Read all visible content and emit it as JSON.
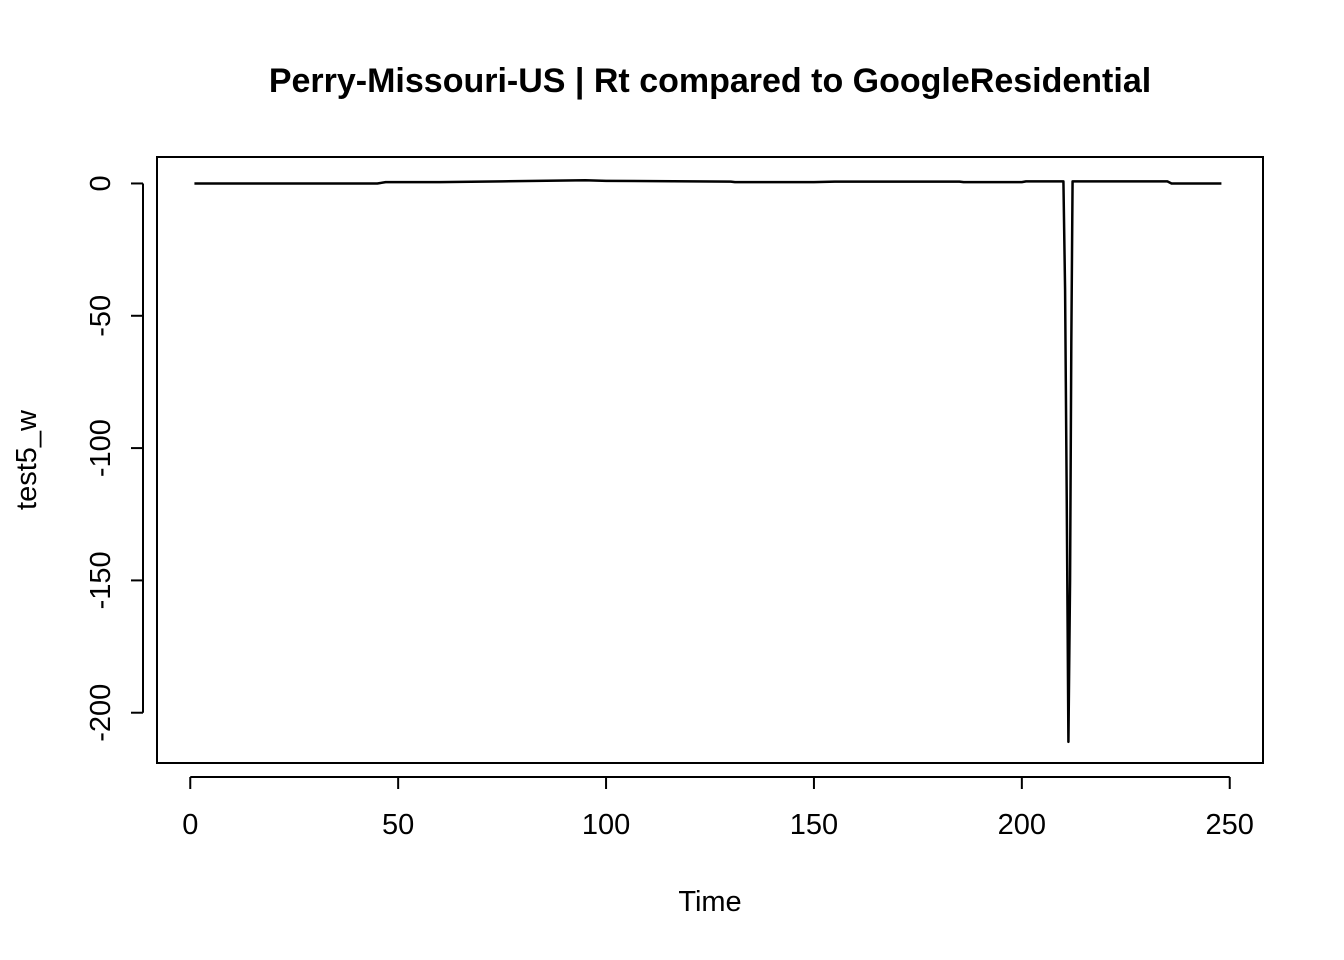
{
  "chart_data": {
    "type": "line",
    "title": "Perry-Missouri-US | Rt compared to GoogleResidential",
    "xlabel": "Time",
    "ylabel": "test5_w",
    "xlim": [
      -8,
      258
    ],
    "ylim": [
      -219,
      10
    ],
    "x_ticks": [
      0,
      50,
      100,
      150,
      200,
      250
    ],
    "x_tick_labels": [
      "0",
      "50",
      "100",
      "150",
      "200",
      "250"
    ],
    "y_ticks": [
      0,
      -50,
      -100,
      -150,
      -200
    ],
    "y_tick_labels": [
      "0",
      "-50",
      "-100",
      "-150",
      "-200"
    ],
    "grid": false,
    "legend": "none",
    "series": [
      {
        "color": "#000000",
        "points": [
          [
            1,
            0
          ],
          [
            45,
            0
          ],
          [
            47,
            0.5
          ],
          [
            60,
            0.5
          ],
          [
            75,
            0.8
          ],
          [
            95,
            1.2
          ],
          [
            100,
            1.0
          ],
          [
            130,
            0.7
          ],
          [
            131,
            0.5
          ],
          [
            150,
            0.5
          ],
          [
            155,
            0.7
          ],
          [
            185,
            0.7
          ],
          [
            186,
            0.5
          ],
          [
            200,
            0.5
          ],
          [
            201,
            0.8
          ],
          [
            210,
            0.8
          ],
          [
            210.4,
            -40
          ],
          [
            210.8,
            -120
          ],
          [
            211.2,
            -211
          ],
          [
            211.6,
            -150
          ],
          [
            211.9,
            -60
          ],
          [
            212.2,
            0.8
          ],
          [
            215,
            0.8
          ],
          [
            235,
            0.8
          ],
          [
            236,
            0
          ],
          [
            248,
            0
          ]
        ]
      }
    ]
  }
}
